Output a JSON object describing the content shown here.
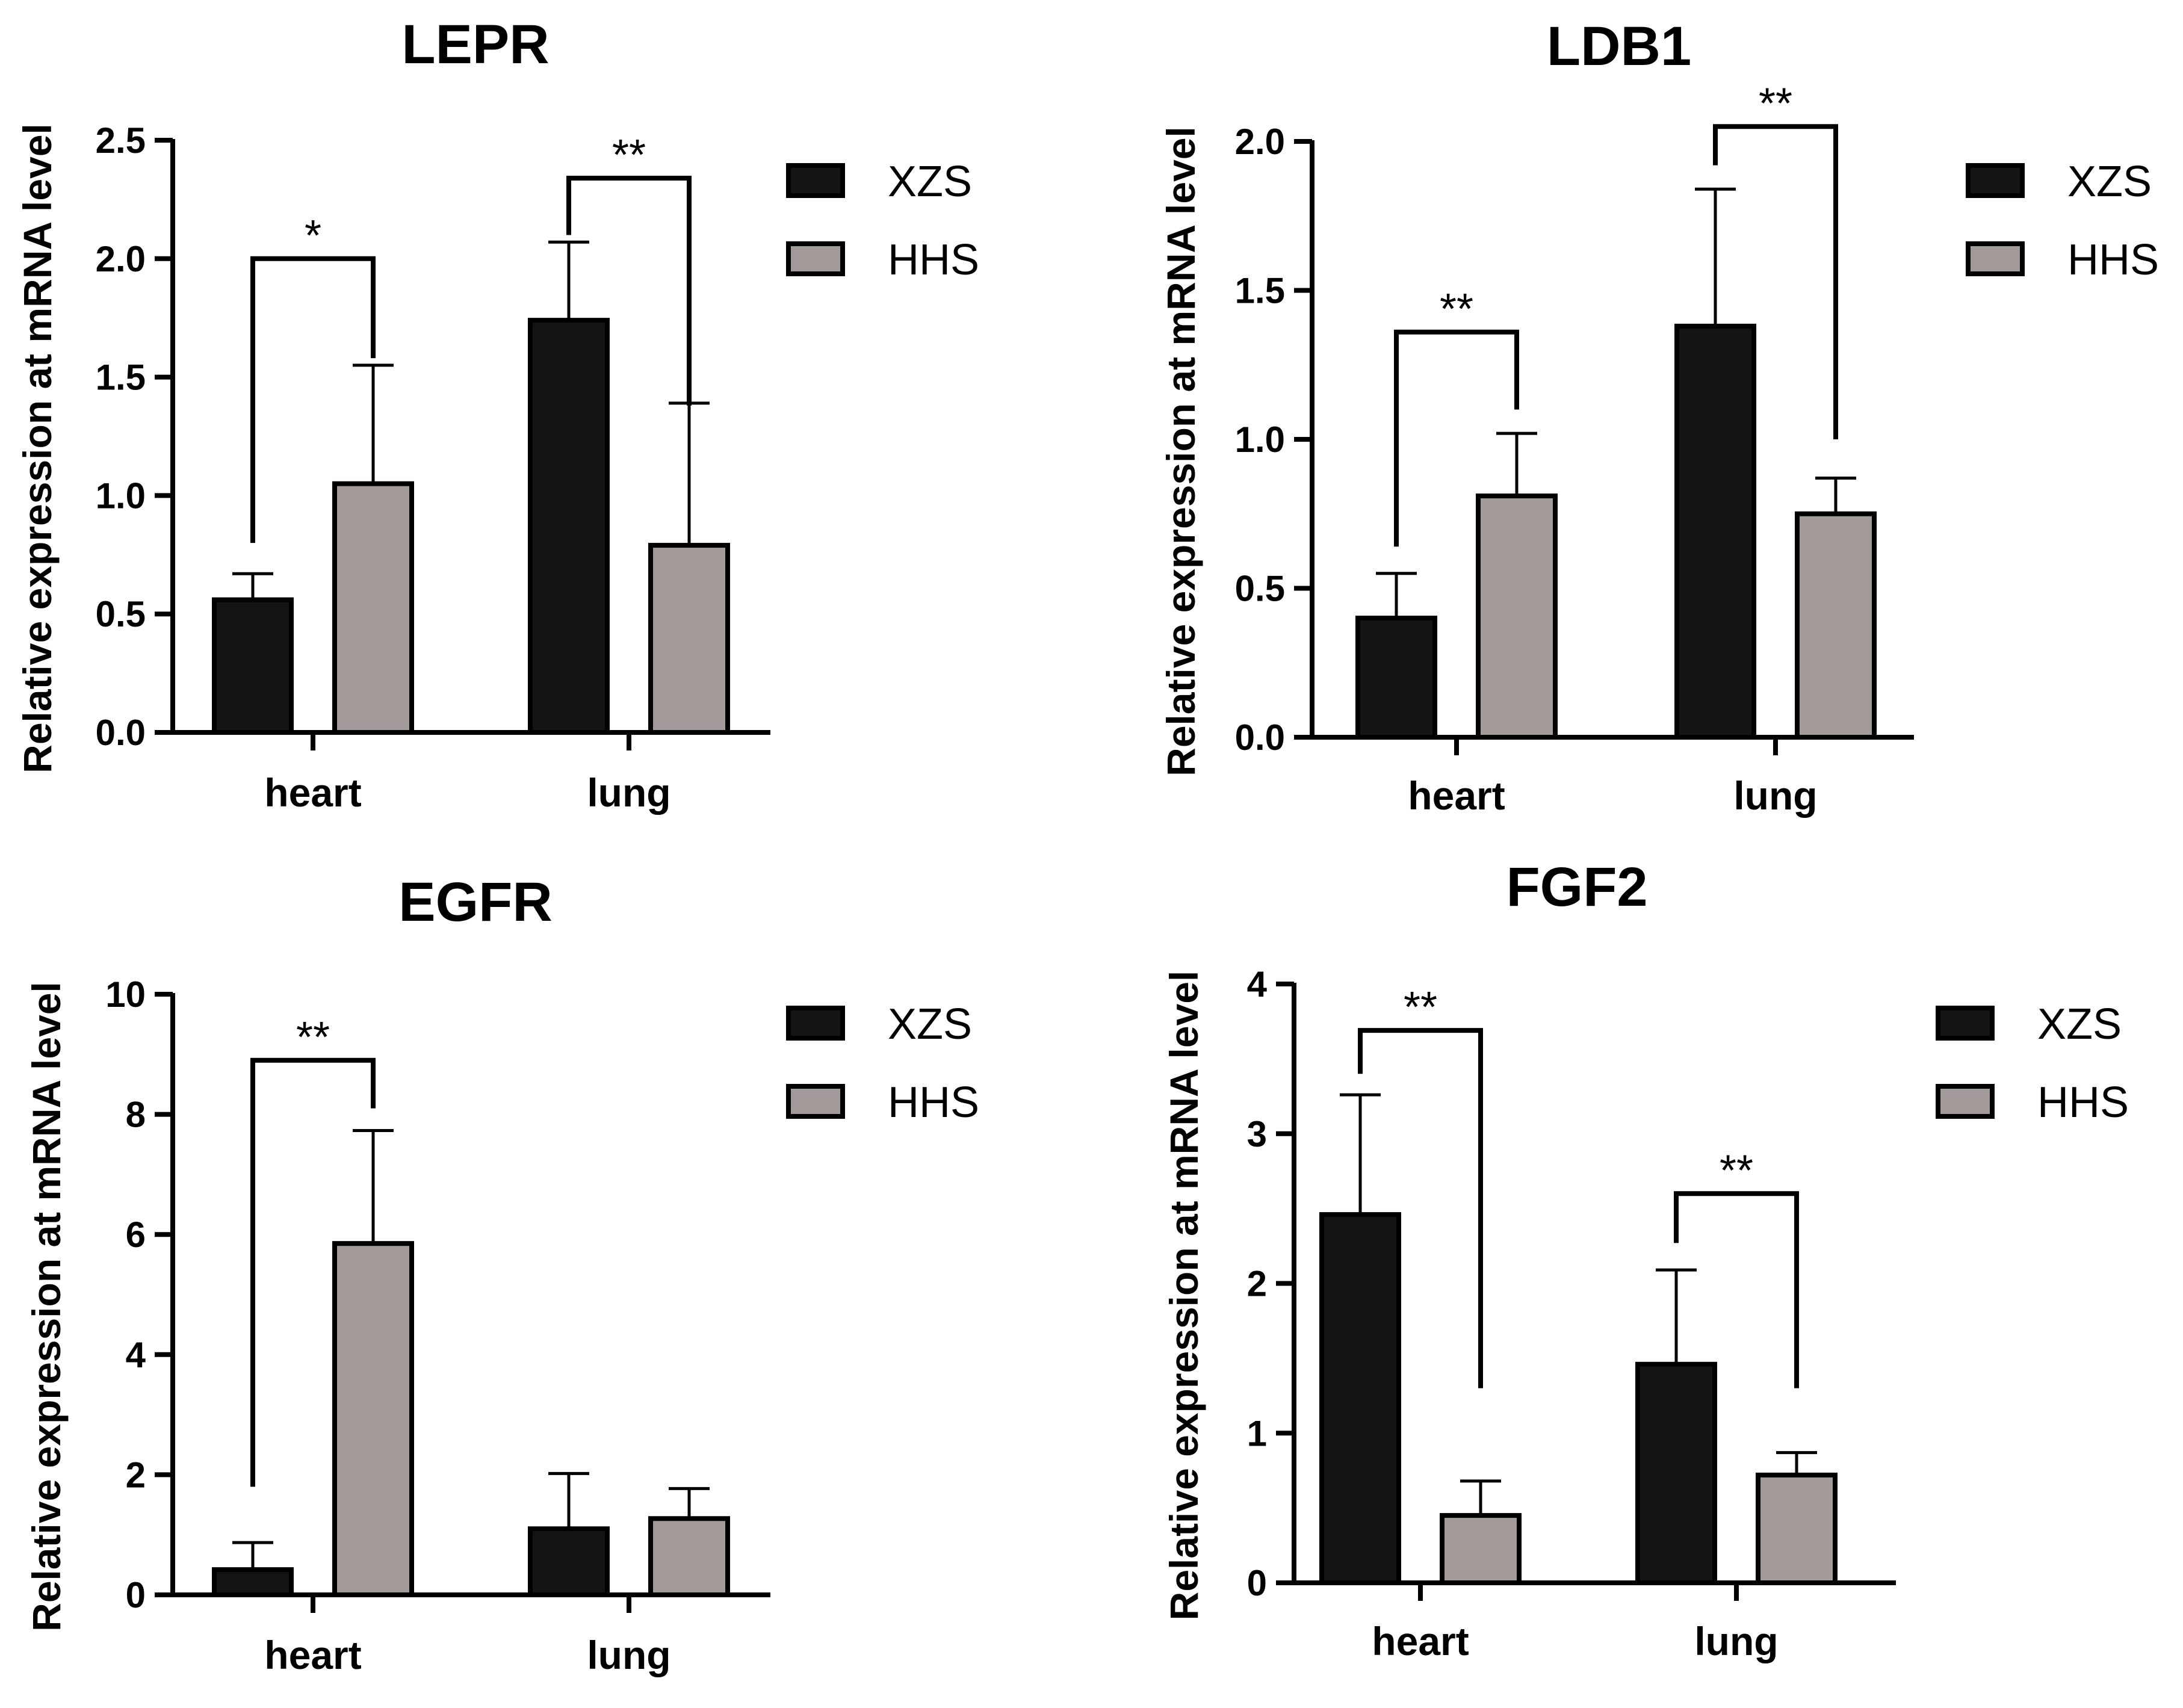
{
  "figure": {
    "ylabel": "Relative expression at mRNA level"
  },
  "chart_data": [
    {
      "type": "bar",
      "title": "LEPR",
      "xlabel": "",
      "ylabel": "Relative expression at mRNA level",
      "categories": [
        "heart",
        "lung"
      ],
      "ylim": [
        0,
        2.5
      ],
      "yticks": [
        0.0,
        0.5,
        1.0,
        1.5,
        2.0,
        2.5
      ],
      "yticklabels": [
        "0.0",
        "0.5",
        "1.0",
        "1.5",
        "2.0",
        "2.5"
      ],
      "series": [
        {
          "name": "XZS",
          "color": "#141414",
          "values": [
            0.56,
            1.74
          ],
          "errors": [
            0.11,
            0.33
          ]
        },
        {
          "name": "HHS",
          "color": "#a39b9a",
          "values": [
            1.05,
            0.79
          ],
          "errors": [
            0.5,
            0.6
          ]
        }
      ],
      "significance": [
        {
          "category": "heart",
          "label": "*",
          "bracket": 2.0,
          "left_end": 0.8,
          "right_end": 1.58
        },
        {
          "category": "lung",
          "label": "**",
          "bracket": 2.34,
          "left_end": 2.1,
          "right_end": 1.38
        }
      ]
    },
    {
      "type": "bar",
      "title": "LDB1",
      "xlabel": "",
      "ylabel": "Relative expression at mRNA level",
      "categories": [
        "heart",
        "lung"
      ],
      "ylim": [
        0,
        2.0
      ],
      "yticks": [
        0.0,
        0.5,
        1.0,
        1.5,
        2.0
      ],
      "yticklabels": [
        "0.0",
        "0.5",
        "1.0",
        "1.5",
        "2.0"
      ],
      "series": [
        {
          "name": "XZS",
          "color": "#141414",
          "values": [
            0.4,
            1.38
          ],
          "errors": [
            0.15,
            0.46
          ]
        },
        {
          "name": "HHS",
          "color": "#a39b9a",
          "values": [
            0.81,
            0.75
          ],
          "errors": [
            0.21,
            0.12
          ]
        }
      ],
      "significance": [
        {
          "category": "heart",
          "label": "**",
          "bracket": 1.36,
          "left_end": 0.64,
          "right_end": 1.1
        },
        {
          "category": "lung",
          "label": "**",
          "bracket": 2.05,
          "left_end": 1.92,
          "right_end": 1.0
        }
      ]
    },
    {
      "type": "bar",
      "title": "EGFR",
      "xlabel": "",
      "ylabel": "Relative expression at mRNA level",
      "categories": [
        "heart",
        "lung"
      ],
      "ylim": [
        0,
        10
      ],
      "yticks": [
        0,
        2,
        4,
        6,
        8,
        10
      ],
      "yticklabels": [
        "0",
        "2",
        "4",
        "6",
        "8",
        "10"
      ],
      "series": [
        {
          "name": "XZS",
          "color": "#141414",
          "values": [
            0.42,
            1.1
          ],
          "errors": [
            0.45,
            0.92
          ]
        },
        {
          "name": "HHS",
          "color": "#a39b9a",
          "values": [
            5.85,
            1.27
          ],
          "errors": [
            1.88,
            0.5
          ]
        }
      ],
      "significance": [
        {
          "category": "heart",
          "label": "**",
          "bracket": 8.9,
          "left_end": 1.8,
          "right_end": 8.1
        }
      ]
    },
    {
      "type": "bar",
      "title": "FGF2",
      "xlabel": "",
      "ylabel": "Relative expression at mRNA level",
      "categories": [
        "heart",
        "lung"
      ],
      "ylim": [
        0,
        4
      ],
      "yticks": [
        0,
        1,
        2,
        3,
        4
      ],
      "yticklabels": [
        "0",
        "1",
        "2",
        "3",
        "4"
      ],
      "series": [
        {
          "name": "XZS",
          "color": "#141414",
          "values": [
            2.46,
            1.46
          ],
          "errors": [
            0.8,
            0.63
          ]
        },
        {
          "name": "HHS",
          "color": "#a39b9a",
          "values": [
            0.45,
            0.72
          ],
          "errors": [
            0.23,
            0.15
          ]
        }
      ],
      "significance": [
        {
          "category": "heart",
          "label": "**",
          "bracket": 3.69,
          "left_end": 3.4,
          "right_end": 1.3
        },
        {
          "category": "lung",
          "label": "**",
          "bracket": 2.6,
          "left_end": 2.27,
          "right_end": 1.3
        }
      ]
    }
  ]
}
